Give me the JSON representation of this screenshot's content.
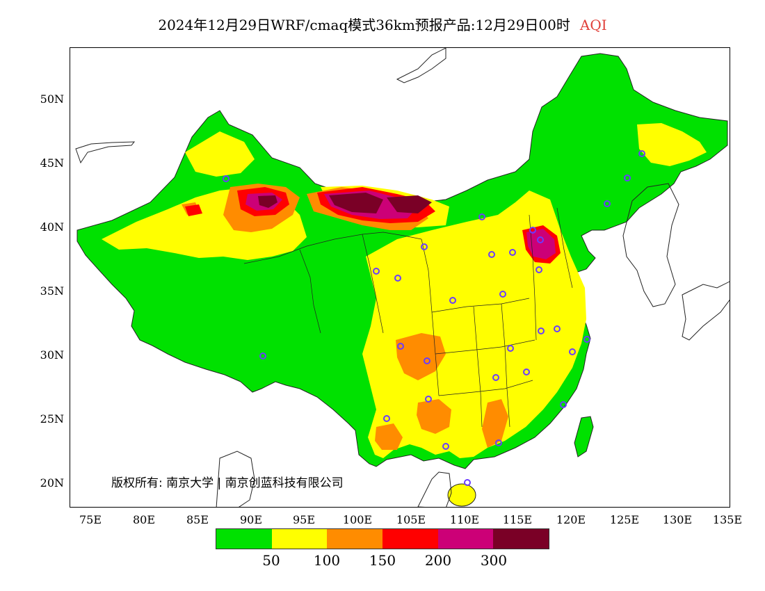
{
  "title": {
    "main": "2024年12月29日WRF/cmaq模式36km预报产品:12月29日00时",
    "variable": "AQI"
  },
  "copyright": {
    "text": "版权所有: 南京大学 | 南京创蓝科技有限公司"
  },
  "axes": {
    "latitudes": [
      "50N",
      "45N",
      "40N",
      "35N",
      "30N",
      "25N",
      "20N"
    ],
    "longitudes": [
      "75E",
      "80E",
      "85E",
      "90E",
      "95E",
      "100E",
      "105E",
      "110E",
      "115E",
      "120E",
      "125E",
      "130E",
      "135E"
    ]
  },
  "legend": {
    "colors": [
      "#00e100",
      "#ffff00",
      "#ff8c00",
      "#ff0000",
      "#cc0077",
      "#7a0026"
    ],
    "thresholds": [
      "50",
      "100",
      "150",
      "200",
      "300"
    ]
  },
  "colors": {
    "good": "#00e100",
    "moderate": "#ffff00",
    "usg": "#ff8c00",
    "unhealthy": "#ff0000",
    "very_unhealthy": "#cc0077",
    "hazardous": "#7a0026",
    "station_marker": "#6a3cff"
  }
}
